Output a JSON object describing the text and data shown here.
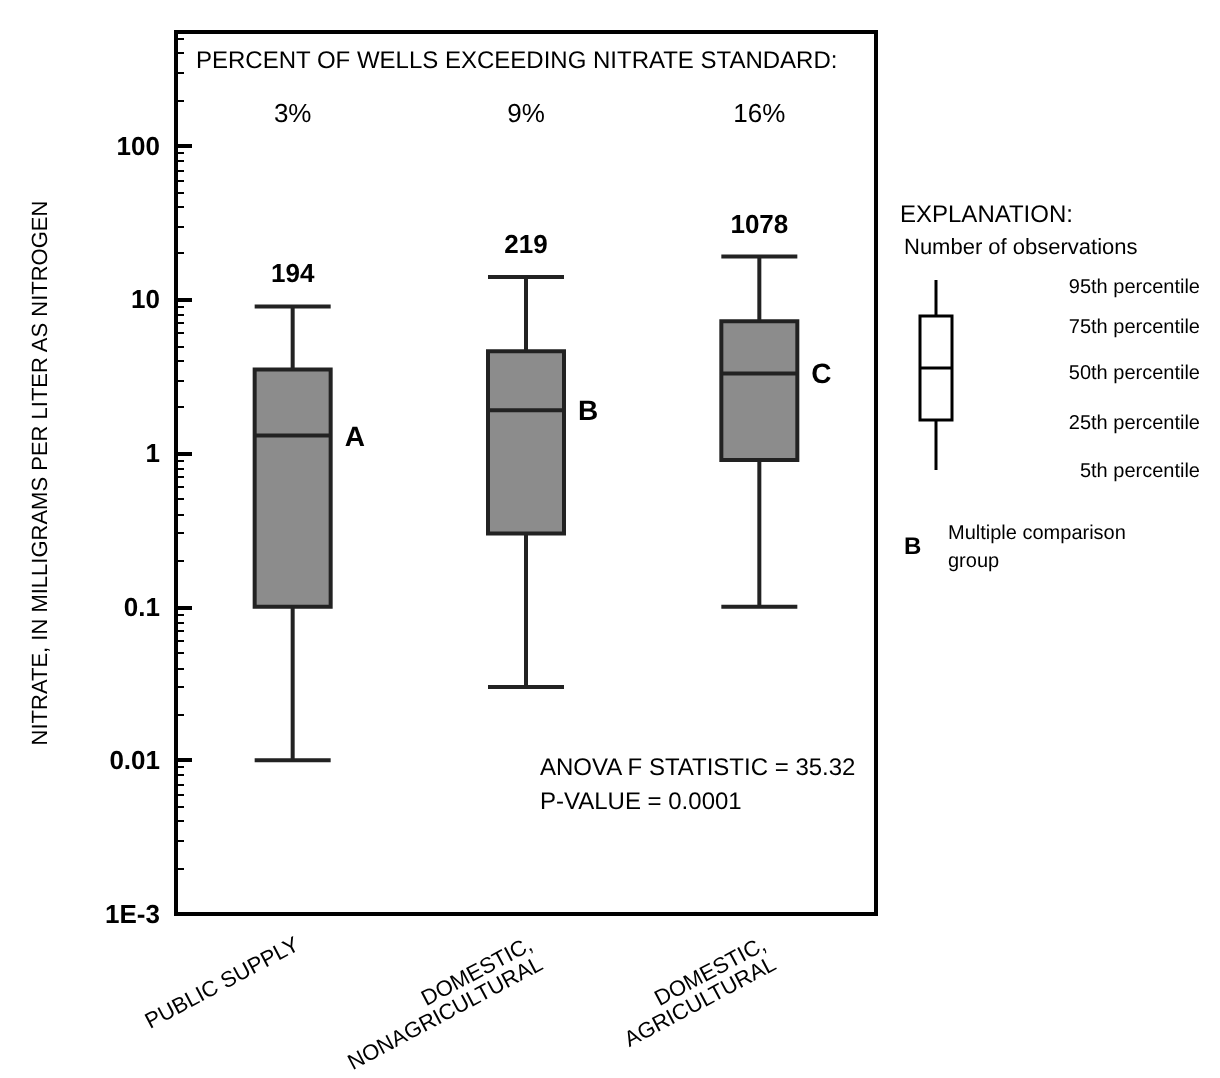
{
  "chart_data": {
    "type": "box",
    "ylabel": "NITRATE, IN MILLIGRAMS PER LITER AS NITROGEN",
    "categories": [
      "PUBLIC SUPPLY",
      "DOMESTIC,\nNONAGRICULTURAL",
      "DOMESTIC,\nAGRICULTURAL"
    ],
    "color": "#8c8c8c",
    "boxes": [
      {
        "low": 0.01,
        "q1": 0.1,
        "median": 1.3,
        "q3": 3.5,
        "high": 9
      },
      {
        "low": 0.03,
        "q1": 0.3,
        "median": 1.9,
        "q3": 4.6,
        "high": 14
      },
      {
        "low": 0.1,
        "q1": 0.9,
        "median": 3.3,
        "q3": 7.2,
        "high": 19
      }
    ],
    "log": "y",
    "ylim": [
      0.001,
      550
    ],
    "yticks": [
      {
        "value": 0.001,
        "label": "1E-3"
      },
      0.01,
      0.1,
      1,
      10,
      100
    ],
    "grid": false,
    "annotations": [
      "PERCENT OF WELLS EXCEEDING NITRATE STANDARD:",
      "3%",
      "9%",
      "16%",
      {
        "text": "194",
        "x": "PUBLIC SUPPLY",
        "y": 9
      },
      {
        "text": "219",
        "x": "DOMESTIC,\nNONAGRICULTURAL",
        "y": 14
      },
      {
        "text": "1078",
        "x": "DOMESTIC,\nAGRICULTURAL",
        "y": 19
      },
      {
        "text": "A",
        "x": "PUBLIC SUPPLY",
        "y": 1.3
      },
      {
        "text": "B",
        "x": "DOMESTIC,\nNONAGRICULTURAL",
        "y": 1.9
      },
      {
        "text": "C",
        "x": "DOMESTIC,\nAGRICULTURAL",
        "y": 3.3
      },
      "ANOVA F STATISTIC = 35.32\nP-VALUE = 0.0001",
      "EXPLANATION:",
      "Number of observations",
      "95th percentile",
      "75th percentile",
      "50th percentile",
      "25th percentile",
      "5th percentile",
      "B",
      "Multiple comparison\ngroup"
    ]
  }
}
